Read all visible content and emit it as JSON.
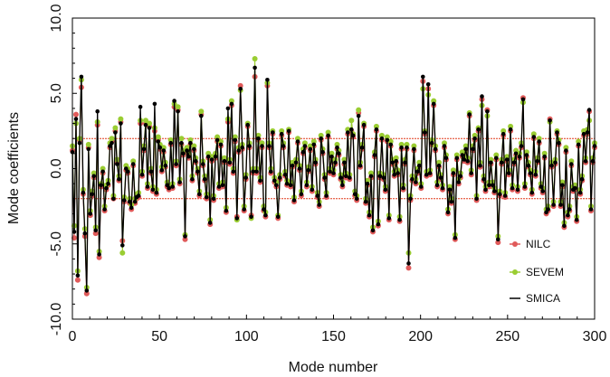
{
  "chart_data": {
    "type": "line",
    "title": "",
    "xlabel": "Mode number",
    "ylabel": "Mode coefficients",
    "xlim": [
      0,
      300
    ],
    "ylim": [
      -10,
      10
    ],
    "x_ticks": [
      "0",
      "50",
      "100",
      "150",
      "200",
      "250",
      "300"
    ],
    "y_ticks": [
      "-10.0",
      "-5.0",
      "0.0",
      "5.0",
      "10.0"
    ],
    "grid": false,
    "legend_position": "bottom-right",
    "reference_lines": [
      2,
      -2
    ],
    "colors": {
      "NILC": "#e05a5a",
      "SEVEM": "#9acd32",
      "SMICA": "#000000",
      "reference": "#e03a1a"
    },
    "series": [
      {
        "name": "NILC",
        "values": [
          1.2,
          -4.6,
          3.6,
          -7.4,
          1.9,
          5.4,
          -1.7,
          -4.5,
          -8.3,
          1.4,
          -3.1,
          -1.8,
          -0.6,
          -4.3,
          2.9,
          -5.9,
          -1.2,
          -0.3,
          -2.8,
          -1.4,
          -1.1,
          1.4,
          1.8,
          -2.0,
          2.5,
          0.4,
          -0.8,
          3.1,
          -4.8,
          -2.2,
          -0.1,
          -0.3,
          -2.3,
          -2.7,
          0.2,
          -2.3,
          -2.0,
          -1.9,
          3.0,
          -0.5,
          1.2,
          3.0,
          -1.3,
          2.8,
          -0.3,
          -1.5,
          2.5,
          -1.7,
          1.9,
          1.3,
          -0.2,
          1.1,
          0.1,
          -1.2,
          -1.4,
          1.6,
          -1.3,
          4.1,
          0.2,
          3.9,
          -1.0,
          1.6,
          0.9,
          -4.7,
          1.1,
          0.7,
          1.6,
          -0.8,
          1.2,
          0.4,
          -0.3,
          -1.8,
          3.6,
          0.2,
          -0.8,
          -2.0,
          0.7,
          -3.7,
          0.5,
          -2.1,
          0.7,
          1.8,
          -1.3,
          1.5,
          -1.2,
          0.4,
          -2.9,
          3.1,
          0.3,
          4.2,
          -0.3,
          1.8,
          -3.2,
          1.1,
          5.5,
          1.3,
          -2.8,
          -0.7,
          2.8,
          1.4,
          -3.1,
          -0.3,
          6.1,
          -0.3,
          1.9,
          -0.9,
          1.4,
          -2.8,
          -3.2,
          5.5,
          1.4,
          -0.3,
          2.3,
          -0.9,
          -1.2,
          -3.3,
          -0.7,
          2.2,
          1.4,
          -0.5,
          -1.1,
          2.4,
          -1.2,
          0.1,
          -2.2,
          0.3,
          1.7,
          -0.1,
          -1.8,
          1.0,
          1.4,
          -1.2,
          -0.2,
          1.2,
          -1.5,
          1.5,
          0.3,
          -1.9,
          -2.5,
          1.9,
          1.0,
          -0.7,
          -1.9,
          2.1,
          -0.3,
          0.7,
          -0.4,
          0.3,
          1.3,
          0.9,
          -0.7,
          -1.2,
          0.3,
          -0.6,
          2.3,
          -0.7,
          2.5,
          2.1,
          -1.8,
          -2.1,
          3.7,
          0.1,
          1.3,
          2.8,
          -2.3,
          -1.1,
          -3.2,
          -0.6,
          -4.2,
          0.8,
          2.5,
          -3.8,
          -0.6,
          1.9,
          -0.7,
          -1.5,
          1.8,
          -3.4,
          1.5,
          0.3,
          -0.5,
          0.4,
          -0.4,
          -3.5,
          1.3,
          -1.4,
          0.3,
          1.3,
          -6.6,
          -2.1,
          -0.8,
          1.2,
          -1.0,
          -0.3,
          0.1,
          -1.3,
          5.8,
          2.3,
          -0.5,
          5.3,
          -0.4,
          1.6,
          4.2,
          1.2,
          -1.2,
          0.1,
          -0.7,
          -1.4,
          1.4,
          0.6,
          -3.0,
          -1.5,
          -2.3,
          -0.4,
          -4.7,
          0.6,
          -1.0,
          -0.6,
          0.8,
          0.5,
          1.2,
          0.4,
          3.5,
          -0.4,
          1.2,
          1.9,
          -2.1,
          2.5,
          0.1,
          4.6,
          -0.8,
          -1.5,
          3.9,
          -1.2,
          0.3,
          -1.2,
          -1.6,
          0.6,
          -4.9,
          -1.8,
          0.3,
          2.2,
          -1.9,
          0.5,
          -0.4,
          2.5,
          -1.4,
          0.3,
          0.9,
          -1.5,
          0.7,
          1.4,
          4.7,
          -1.3,
          0.8,
          0.1,
          -0.4,
          -1.7,
          2.0,
          -0.5,
          0.4,
          1.7,
          -1.3,
          -1.6,
          0.7,
          -3.0,
          -2.8,
          3.3,
          0.1,
          -2.5,
          0.3,
          2.3,
          1.6,
          -2.5,
          -1.2,
          -3.9,
          1.1,
          -3.2,
          -2.8,
          0.2,
          -1.5,
          -1.4,
          -3.5,
          1.5,
          -1.7,
          -0.8,
          2.2,
          0.4,
          2.3,
          3.8,
          -2.8,
          0.4,
          1.4
        ]
      },
      {
        "name": "SEVEM",
        "values": [
          1.5,
          -3.8,
          3.0,
          -6.8,
          2.0,
          5.9,
          -1.4,
          -4.0,
          -7.9,
          1.6,
          -2.8,
          -1.5,
          -0.3,
          -3.9,
          3.1,
          -5.5,
          -1.0,
          0.0,
          -2.5,
          -1.1,
          -0.8,
          1.7,
          2.0,
          -1.8,
          2.7,
          0.6,
          -0.5,
          3.3,
          -5.6,
          -1.9,
          0.2,
          0.0,
          -2.0,
          -2.4,
          0.5,
          -2.0,
          -1.7,
          -1.6,
          3.2,
          -0.2,
          1.5,
          3.2,
          -1.0,
          3.0,
          0.0,
          -1.2,
          2.7,
          -1.4,
          2.1,
          1.6,
          0.1,
          1.4,
          0.4,
          -0.9,
          -1.1,
          1.9,
          -1.0,
          4.3,
          0.5,
          4.1,
          -0.7,
          2.0,
          1.2,
          -4.4,
          1.4,
          1.0,
          1.9,
          -0.5,
          1.5,
          0.7,
          0.0,
          -1.5,
          3.8,
          0.5,
          -0.5,
          -1.7,
          1.0,
          -3.4,
          0.8,
          -1.8,
          1.0,
          2.1,
          -1.0,
          1.8,
          -0.9,
          0.7,
          -2.6,
          3.3,
          0.6,
          4.5,
          0.0,
          2.1,
          -3.4,
          1.4,
          5.2,
          1.6,
          -2.5,
          -0.4,
          3.0,
          1.7,
          -3.3,
          0.0,
          7.3,
          0.0,
          2.2,
          -0.6,
          1.7,
          -2.5,
          -2.9,
          5.7,
          1.7,
          0.0,
          2.5,
          -0.6,
          -0.9,
          -3.1,
          -0.4,
          2.5,
          1.7,
          -0.2,
          -0.8,
          2.6,
          -0.9,
          0.4,
          -1.9,
          0.6,
          2.0,
          0.2,
          -1.5,
          1.3,
          1.7,
          -0.9,
          0.1,
          1.5,
          -1.2,
          1.8,
          0.6,
          -1.6,
          -2.2,
          2.2,
          1.3,
          -0.4,
          -1.6,
          2.4,
          0.0,
          1.0,
          -0.1,
          0.6,
          1.6,
          1.2,
          -0.4,
          -0.9,
          0.6,
          -0.3,
          2.6,
          -0.4,
          3.2,
          2.3,
          -1.5,
          -1.8,
          3.9,
          0.4,
          1.6,
          3.0,
          -2.0,
          -0.8,
          -2.9,
          -0.3,
          -3.9,
          1.1,
          2.8,
          -3.5,
          -0.3,
          2.2,
          -0.4,
          -1.2,
          2.1,
          -3.1,
          1.8,
          0.6,
          -0.2,
          0.7,
          -0.1,
          -3.2,
          1.6,
          -1.1,
          0.6,
          1.6,
          -5.6,
          -1.8,
          -0.5,
          1.5,
          -0.7,
          0.0,
          0.4,
          -1.0,
          5.3,
          2.5,
          -0.2,
          4.9,
          -0.1,
          1.9,
          4.5,
          1.5,
          -0.9,
          0.4,
          -0.4,
          -1.1,
          1.7,
          0.9,
          -2.7,
          -1.2,
          -2.0,
          -0.1,
          -4.4,
          0.9,
          -0.7,
          -0.3,
          1.1,
          0.8,
          1.5,
          0.7,
          3.7,
          -0.1,
          1.5,
          2.2,
          -1.8,
          2.7,
          0.4,
          4.2,
          -0.5,
          -1.2,
          3.5,
          -0.9,
          0.6,
          -0.9,
          -1.3,
          0.9,
          -4.5,
          -1.5,
          0.6,
          2.5,
          -1.6,
          0.8,
          -0.1,
          2.8,
          -1.1,
          0.6,
          1.2,
          -1.2,
          1.0,
          1.7,
          4.4,
          -1.0,
          1.1,
          0.4,
          -0.1,
          -1.4,
          2.3,
          -0.2,
          0.7,
          2.0,
          -1.0,
          -1.3,
          1.0,
          -2.7,
          -2.5,
          3.1,
          0.4,
          -2.2,
          0.6,
          2.5,
          1.9,
          -2.2,
          -0.9,
          -3.6,
          1.4,
          -2.9,
          -2.5,
          0.5,
          -1.2,
          -1.1,
          -3.2,
          1.8,
          -1.4,
          -0.5,
          2.5,
          0.7,
          2.6,
          3.2,
          -2.5,
          0.7,
          1.7
        ]
      },
      {
        "name": "SMICA",
        "values": [
          1.1,
          -4.2,
          3.3,
          -7.1,
          1.7,
          6.1,
          -1.6,
          -4.3,
          -8.1,
          1.3,
          -3.0,
          -1.7,
          -0.5,
          -4.1,
          3.8,
          -5.7,
          -1.1,
          -0.2,
          -2.7,
          -1.3,
          -1.0,
          1.5,
          1.7,
          -2.0,
          2.4,
          0.3,
          -0.7,
          3.0,
          -5.1,
          -2.1,
          0.0,
          -0.2,
          -2.2,
          -2.6,
          0.3,
          -2.2,
          -1.9,
          -1.8,
          4.1,
          -0.4,
          1.3,
          2.9,
          -1.2,
          2.7,
          -0.2,
          -1.4,
          4.3,
          -1.6,
          1.8,
          1.4,
          -0.1,
          1.2,
          0.2,
          -1.1,
          -1.3,
          1.7,
          -1.2,
          4.5,
          0.3,
          3.8,
          -0.9,
          1.7,
          1.0,
          -4.5,
          1.2,
          0.8,
          1.7,
          -0.7,
          1.3,
          0.5,
          -0.2,
          -1.7,
          3.5,
          0.3,
          -0.7,
          -1.9,
          0.8,
          -3.6,
          0.6,
          -2.0,
          0.8,
          1.9,
          -1.2,
          1.6,
          -1.1,
          0.5,
          -2.8,
          4.0,
          0.4,
          4.3,
          -0.2,
          1.9,
          -3.3,
          1.2,
          5.3,
          1.4,
          -2.7,
          -0.6,
          2.9,
          1.5,
          -3.2,
          -0.2,
          6.7,
          -0.2,
          2.0,
          -0.8,
          1.5,
          -2.7,
          -3.1,
          5.9,
          1.5,
          -0.2,
          2.4,
          -0.8,
          -1.1,
          -3.2,
          -0.6,
          2.3,
          1.5,
          -0.4,
          -1.0,
          2.5,
          -1.1,
          0.2,
          -2.1,
          0.4,
          1.8,
          0.0,
          -1.7,
          1.1,
          1.5,
          -1.1,
          -0.1,
          1.3,
          -1.4,
          1.6,
          0.4,
          -1.8,
          -2.4,
          2.0,
          1.1,
          -0.6,
          -1.8,
          2.2,
          -0.2,
          0.8,
          -0.3,
          0.4,
          1.4,
          1.0,
          -0.6,
          -1.1,
          0.4,
          -0.5,
          2.4,
          -0.6,
          2.6,
          2.2,
          -1.7,
          -2.0,
          3.5,
          0.2,
          1.4,
          2.9,
          -2.2,
          -1.0,
          -3.1,
          -0.5,
          -4.1,
          0.9,
          2.6,
          -3.7,
          -0.5,
          2.0,
          -0.6,
          -1.4,
          1.9,
          -3.3,
          1.6,
          0.4,
          -0.4,
          0.5,
          -0.3,
          -3.4,
          1.4,
          -1.3,
          0.4,
          1.4,
          -6.3,
          -2.0,
          -0.7,
          1.3,
          -0.9,
          -0.2,
          0.2,
          -1.2,
          6.1,
          2.4,
          -0.4,
          5.6,
          -0.3,
          1.7,
          4.3,
          1.3,
          -1.1,
          0.2,
          -0.6,
          -1.3,
          1.5,
          0.7,
          -2.9,
          -1.4,
          -2.2,
          -0.3,
          -4.6,
          0.7,
          -0.9,
          -0.5,
          0.9,
          0.6,
          1.3,
          0.5,
          3.6,
          -0.3,
          1.3,
          2.0,
          -2.0,
          2.6,
          0.2,
          4.8,
          -0.7,
          -1.4,
          3.8,
          -1.1,
          0.4,
          -1.1,
          -1.5,
          0.7,
          -4.7,
          -1.7,
          0.4,
          2.3,
          -1.8,
          0.6,
          -0.3,
          2.6,
          -1.3,
          0.4,
          1.0,
          -1.4,
          0.8,
          1.5,
          4.6,
          -1.2,
          0.9,
          0.2,
          -0.3,
          -1.6,
          2.1,
          -0.4,
          0.5,
          1.8,
          -1.2,
          -1.5,
          0.8,
          -2.9,
          -2.7,
          3.2,
          0.2,
          -2.4,
          0.4,
          2.4,
          1.7,
          -2.4,
          -1.1,
          -3.8,
          1.2,
          -3.1,
          -2.7,
          0.3,
          -1.4,
          -1.3,
          -3.4,
          1.6,
          -1.6,
          -0.7,
          2.3,
          0.5,
          2.4,
          3.9,
          -2.7,
          0.5,
          1.5
        ]
      }
    ]
  }
}
